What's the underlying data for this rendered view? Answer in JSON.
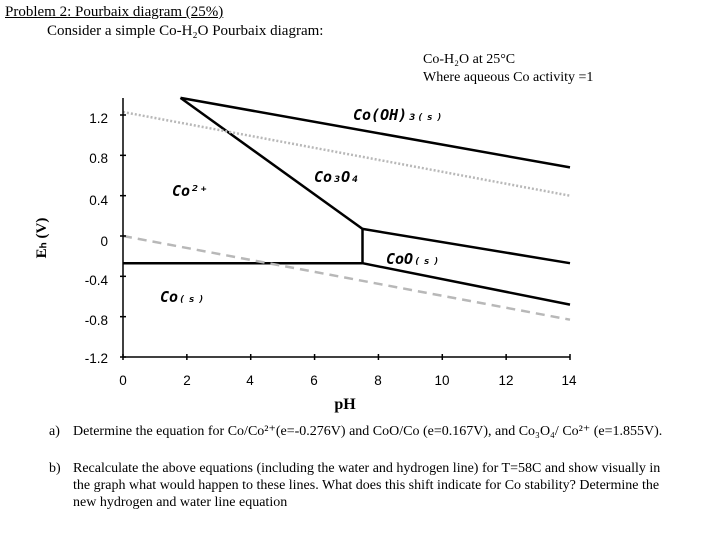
{
  "problem": {
    "title": "Problem 2: Pourbaix diagram (25%)",
    "subtitle": "Consider a simple Co-H₂O Pourbaix diagram:"
  },
  "diagram": {
    "note_line1": "Co-H₂O at 25°C",
    "note_line2": "Where aqueous Co activity =1",
    "y_axis_label": "Eₕ (V)",
    "x_axis_label": "pH",
    "y_ticks": [
      "1.2",
      "0.8",
      "0.4",
      "0",
      "-0.4",
      "-0.8",
      "-1.2"
    ],
    "x_ticks": [
      "0",
      "2",
      "4",
      "6",
      "8",
      "10",
      "12",
      "14"
    ],
    "regions": {
      "co2plus": "Co²⁺",
      "co_s": "Co₍ₛ₎",
      "co3o4": "Co₃O₄",
      "cooh3": "Co(OH)₃₍ₛ₎",
      "coo": "CoO₍ₛ₎"
    }
  },
  "chart_data": {
    "type": "line",
    "xlabel": "pH",
    "ylabel": "Eₕ (V)",
    "xlim": [
      0,
      14
    ],
    "ylim": [
      -1.2,
      1.2
    ],
    "x_ticks": [
      0,
      2,
      4,
      6,
      8,
      10,
      12,
      14
    ],
    "y_ticks": [
      1.2,
      0.8,
      0.4,
      0,
      -0.4,
      -0.8,
      -1.2
    ],
    "series": [
      {
        "x": [
          1.8,
          14
        ],
        "y": [
          1.37,
          0.68
        ]
      },
      {
        "x": [
          1.8,
          7.5
        ],
        "y": [
          1.37,
          0.07
        ]
      },
      {
        "x": [
          7.5,
          14
        ],
        "y": [
          0.07,
          -0.27
        ]
      },
      {
        "x": [
          7.5,
          7.5
        ],
        "y": [
          -0.27,
          0.07
        ]
      },
      {
        "x": [
          0,
          7.5
        ],
        "y": [
          -0.27,
          -0.27
        ]
      },
      {
        "x": [
          7.5,
          14
        ],
        "y": [
          -0.27,
          -0.68
        ]
      },
      {
        "x": [
          0,
          14
        ],
        "y": [
          1.23,
          0.4
        ],
        "style": "dotted",
        "color": "#b8b8b8"
      },
      {
        "x": [
          0,
          14
        ],
        "y": [
          0.0,
          -0.83
        ],
        "style": "dashed",
        "color": "#b8b8b8"
      }
    ]
  },
  "questions": [
    {
      "label": "a)",
      "text": "Determine the equation for Co/Co²⁺(e=-0.276V) and CoO/Co (e=0.167V), and Co₃O₄/ Co²⁺ (e=1.855V)."
    },
    {
      "label": "b)",
      "text": "Recalculate the above equations (including the water and hydrogen line) for T=58C and show visually in the graph what would happen to these lines. What does this shift indicate for Co stability? Determine the new hydrogen and water line equation"
    }
  ]
}
